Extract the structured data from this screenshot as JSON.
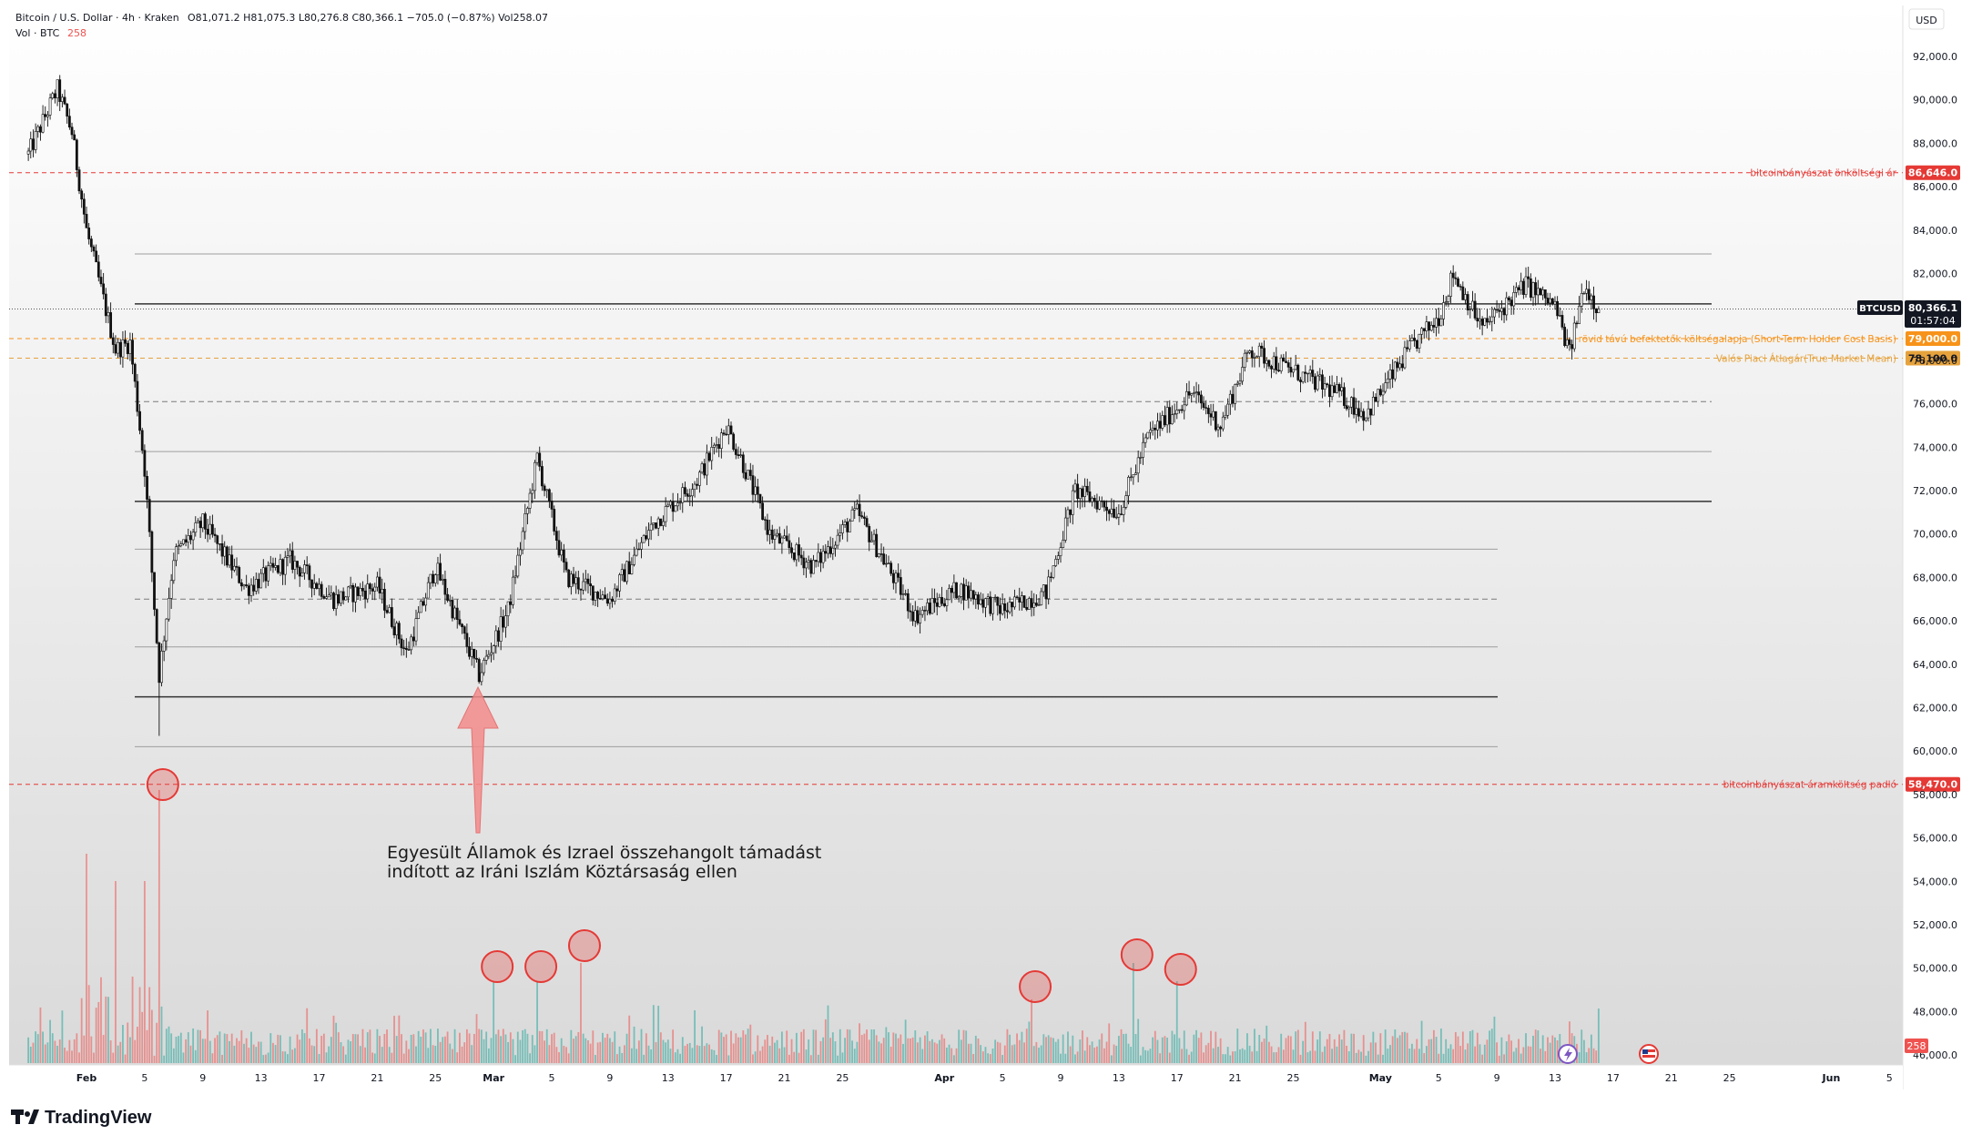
{
  "header": {
    "symbol_line": "Bitcoin / U.S. Dollar · 4h · Kraken",
    "ohlc": "O81,071.2  H81,075.3  L80,276.8  C80,366.1  −705.0 (−0.87%)  Vol258.07",
    "vol_label": "Vol · BTC",
    "vol_value": "258"
  },
  "currency": "USD",
  "brand": "TradingView",
  "annotation": {
    "line1": "Egyesült Államok és Izrael összehangolt támadást",
    "line2": "indított az Iráni Iszlám Köztársaság ellen"
  },
  "price_tag": {
    "symbol": "BTCUSD",
    "price": "80,366.1",
    "countdown": "01:57:04",
    "vol_badge": "258"
  },
  "colors": {
    "up": "#26a69a",
    "down": "#ef5350",
    "candle": "#111111",
    "mining_line": "#e53935",
    "sth_line": "#f7931a",
    "tmm_line": "#e6a23c",
    "circle": "#e53935"
  },
  "chart_data": {
    "type": "candlestick",
    "x_axis": {
      "date_range": [
        "Jan 28",
        "Jun 7"
      ],
      "tick_labels": [
        "Feb",
        "5",
        "9",
        "13",
        "17",
        "21",
        "25",
        "Mar",
        "5",
        "9",
        "13",
        "17",
        "21",
        "25",
        "Apr",
        "5",
        "9",
        "13",
        "17",
        "21",
        "25",
        "May",
        "5",
        "9",
        "13",
        "17",
        "21",
        "25",
        "Jun",
        "5"
      ]
    },
    "y_axis": {
      "range": [
        46000,
        93000
      ],
      "tick_labels": [
        "92,000.0",
        "90,000.0",
        "88,000.0",
        "86,000.0",
        "84,000.0",
        "82,000.0",
        "80,000.0",
        "78,000.0",
        "76,000.0",
        "74,000.0",
        "72,000.0",
        "70,000.0",
        "68,000.0",
        "66,000.0",
        "64,000.0",
        "62,000.0",
        "60,000.0",
        "58,000.0",
        "56,000.0",
        "54,000.0",
        "52,000.0",
        "50,000.0",
        "48,000.0",
        "46,000.0"
      ]
    },
    "price_path": [
      {
        "date": "Jan 28",
        "price": 87500
      },
      {
        "date": "Jan 30",
        "price": 90500
      },
      {
        "date": "Jan 31",
        "price": 88500
      },
      {
        "date": "Feb 1",
        "price": 84000
      },
      {
        "date": "Feb 3",
        "price": 78500
      },
      {
        "date": "Feb 4",
        "price": 78800
      },
      {
        "date": "Feb 5",
        "price": 73000
      },
      {
        "date": "Feb 6",
        "price": 63500
      },
      {
        "date": "Feb 7",
        "price": 69000
      },
      {
        "date": "Feb 9",
        "price": 70500
      },
      {
        "date": "Feb 12",
        "price": 67500
      },
      {
        "date": "Feb 15",
        "price": 68800
      },
      {
        "date": "Feb 18",
        "price": 67000
      },
      {
        "date": "Feb 21",
        "price": 67600
      },
      {
        "date": "Feb 23",
        "price": 64500
      },
      {
        "date": "Feb 25",
        "price": 68500
      },
      {
        "date": "Feb 28",
        "price": 63500
      },
      {
        "date": "Mar 2",
        "price": 66500
      },
      {
        "date": "Mar 4",
        "price": 73500
      },
      {
        "date": "Mar 6",
        "price": 68000
      },
      {
        "date": "Mar 9",
        "price": 67000
      },
      {
        "date": "Mar 12",
        "price": 70500
      },
      {
        "date": "Mar 15",
        "price": 72500
      },
      {
        "date": "Mar 17",
        "price": 75000
      },
      {
        "date": "Mar 18",
        "price": 73500
      },
      {
        "date": "Mar 20",
        "price": 70000
      },
      {
        "date": "Mar 23",
        "price": 68500
      },
      {
        "date": "Mar 26",
        "price": 71000
      },
      {
        "date": "Mar 30",
        "price": 66200
      },
      {
        "date": "Apr 2",
        "price": 67500
      },
      {
        "date": "Apr 5",
        "price": 66500
      },
      {
        "date": "Apr 8",
        "price": 67300
      },
      {
        "date": "Apr 10",
        "price": 72000
      },
      {
        "date": "Apr 13",
        "price": 71000
      },
      {
        "date": "Apr 15",
        "price": 74500
      },
      {
        "date": "Apr 18",
        "price": 76500
      },
      {
        "date": "Apr 20",
        "price": 75000
      },
      {
        "date": "Apr 22",
        "price": 78500
      },
      {
        "date": "Apr 25",
        "price": 77500
      },
      {
        "date": "Apr 28",
        "price": 76500
      },
      {
        "date": "Apr 30",
        "price": 75500
      },
      {
        "date": "May 3",
        "price": 78500
      },
      {
        "date": "May 5",
        "price": 80000
      },
      {
        "date": "May 6",
        "price": 82000
      },
      {
        "date": "May 8",
        "price": 79500
      },
      {
        "date": "May 11",
        "price": 81500
      },
      {
        "date": "May 13",
        "price": 80500
      },
      {
        "date": "May 14",
        "price": 78300
      },
      {
        "date": "May 15",
        "price": 81500
      },
      {
        "date": "May 16",
        "price": 80366.1
      }
    ],
    "levels": [
      {
        "label": "bitcoinbányászat önköltségi ár",
        "value": 86646.0,
        "value_text": "86,646.0",
        "color": "#e53935",
        "style": "dashed"
      },
      {
        "label": "rövid távú befektetők költségalapja (Short-Term Holder Cost Basis)",
        "value": 79000.0,
        "value_text": "79,000.0",
        "color": "#f7931a",
        "style": "dashed"
      },
      {
        "label": "Valós Piaci Átlagár(True Market Mean)",
        "value": 78100.0,
        "value_text": "78,100.0",
        "color": "#e6a23c",
        "style": "dashed"
      },
      {
        "label": "bitcoinbányászat áramköltség padló",
        "value": 58470.0,
        "value_text": "58,470.0",
        "color": "#e53935",
        "style": "dashed"
      }
    ],
    "grid_levels": [
      {
        "value": 82900,
        "style": "solid-light"
      },
      {
        "value": 80600,
        "style": "solid-dark"
      },
      {
        "value": 76100,
        "style": "dashed"
      },
      {
        "value": 73800,
        "style": "solid-light"
      },
      {
        "value": 71500,
        "style": "solid-dark"
      },
      {
        "value": 69300,
        "style": "solid-light"
      },
      {
        "value": 67000,
        "style": "dashed"
      },
      {
        "value": 64800,
        "style": "solid-light"
      },
      {
        "value": 62500,
        "style": "solid-dark"
      },
      {
        "value": 60200,
        "style": "solid-light"
      }
    ],
    "volume_spikes": [
      {
        "date": "Feb 6",
        "marked": true
      },
      {
        "date": "Mar 1",
        "marked": true
      },
      {
        "date": "Mar 4",
        "marked": true
      },
      {
        "date": "Mar 7",
        "marked": true
      },
      {
        "date": "Apr 7",
        "marked": true
      },
      {
        "date": "Apr 14",
        "marked": true
      },
      {
        "date": "Apr 17",
        "marked": true
      }
    ],
    "current_price": 80366.1
  }
}
